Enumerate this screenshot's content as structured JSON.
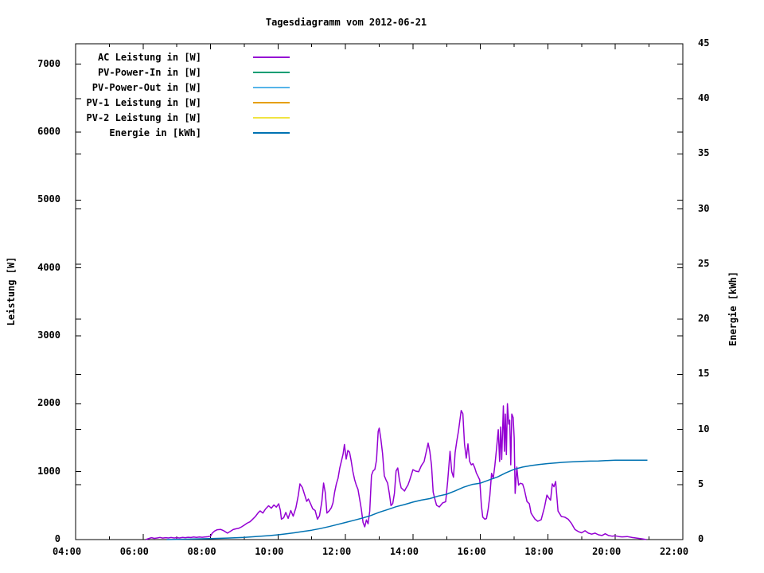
{
  "chart_data": {
    "type": "line",
    "title": "Tagesdiagramm vom 2012-06-21",
    "background": "#ffffff",
    "grid": false,
    "legend_position": "top-left-inside",
    "x_axis": {
      "range_hours": [
        4,
        22
      ],
      "tick_labels": [
        "04:00",
        "06:00",
        "08:00",
        "10:00",
        "12:00",
        "14:00",
        "16:00",
        "18:00",
        "20:00",
        "22:00"
      ],
      "major_tick_every_hours": 2,
      "minor_tick_every_hours": 1
    },
    "y_left": {
      "label": "Leistung [W]",
      "range": [
        0,
        7300
      ],
      "tick_step": 1000,
      "tick_labels": [
        "0",
        "1000",
        "2000",
        "3000",
        "4000",
        "5000",
        "6000",
        "7000"
      ]
    },
    "y_right": {
      "label": "Energie [kWh]",
      "range": [
        0,
        45
      ],
      "tick_step": 5,
      "tick_labels": [
        "0",
        "5",
        "10",
        "15",
        "20",
        "25",
        "30",
        "35",
        "40",
        "45"
      ]
    },
    "legend": [
      {
        "label": "AC Leistung in [W]",
        "color": "#9400d3"
      },
      {
        "label": "PV-Power-In in [W]",
        "color": "#009e73"
      },
      {
        "label": "PV-Power-Out in [W]",
        "color": "#56b4e9"
      },
      {
        "label": "PV-1 Leistung in [W]",
        "color": "#e69f00"
      },
      {
        "label": "PV-2 Leistung in [W]",
        "color": "#f0e442"
      },
      {
        "label": "Energie in [kWh]",
        "color": "#0072b2"
      }
    ],
    "series": [
      {
        "name": "AC Leistung in [W]",
        "color": "#9400d3",
        "axis": "y1",
        "points": [
          [
            6.08,
            0
          ],
          [
            6.15,
            12
          ],
          [
            6.25,
            28
          ],
          [
            6.33,
            18
          ],
          [
            6.42,
            24
          ],
          [
            6.5,
            32
          ],
          [
            6.58,
            22
          ],
          [
            6.67,
            28
          ],
          [
            6.75,
            24
          ],
          [
            6.83,
            30
          ],
          [
            6.92,
            24
          ],
          [
            7.0,
            28
          ],
          [
            7.08,
            24
          ],
          [
            7.17,
            32
          ],
          [
            7.25,
            28
          ],
          [
            7.33,
            34
          ],
          [
            7.42,
            30
          ],
          [
            7.5,
            38
          ],
          [
            7.58,
            32
          ],
          [
            7.67,
            38
          ],
          [
            7.75,
            34
          ],
          [
            7.83,
            38
          ],
          [
            7.92,
            42
          ],
          [
            8.0,
            50
          ],
          [
            8.05,
            95
          ],
          [
            8.12,
            125
          ],
          [
            8.2,
            145
          ],
          [
            8.3,
            150
          ],
          [
            8.4,
            128
          ],
          [
            8.5,
            95
          ],
          [
            8.58,
            118
          ],
          [
            8.67,
            148
          ],
          [
            8.75,
            158
          ],
          [
            8.83,
            165
          ],
          [
            8.92,
            188
          ],
          [
            9.0,
            212
          ],
          [
            9.08,
            240
          ],
          [
            9.17,
            262
          ],
          [
            9.25,
            300
          ],
          [
            9.33,
            340
          ],
          [
            9.42,
            400
          ],
          [
            9.47,
            422
          ],
          [
            9.55,
            390
          ],
          [
            9.63,
            450
          ],
          [
            9.72,
            498
          ],
          [
            9.8,
            462
          ],
          [
            9.88,
            510
          ],
          [
            9.95,
            478
          ],
          [
            10.02,
            527
          ],
          [
            10.07,
            430
          ],
          [
            10.1,
            300
          ],
          [
            10.17,
            322
          ],
          [
            10.23,
            400
          ],
          [
            10.3,
            312
          ],
          [
            10.38,
            428
          ],
          [
            10.45,
            345
          ],
          [
            10.53,
            468
          ],
          [
            10.6,
            650
          ],
          [
            10.65,
            820
          ],
          [
            10.72,
            768
          ],
          [
            10.8,
            645
          ],
          [
            10.85,
            562
          ],
          [
            10.9,
            598
          ],
          [
            10.97,
            520
          ],
          [
            11.03,
            452
          ],
          [
            11.1,
            428
          ],
          [
            11.17,
            300
          ],
          [
            11.23,
            352
          ],
          [
            11.3,
            558
          ],
          [
            11.35,
            832
          ],
          [
            11.4,
            692
          ],
          [
            11.45,
            390
          ],
          [
            11.52,
            425
          ],
          [
            11.58,
            468
          ],
          [
            11.63,
            540
          ],
          [
            11.68,
            700
          ],
          [
            11.73,
            822
          ],
          [
            11.78,
            905
          ],
          [
            11.83,
            1052
          ],
          [
            11.88,
            1155
          ],
          [
            11.93,
            1258
          ],
          [
            11.97,
            1400
          ],
          [
            12.02,
            1185
          ],
          [
            12.07,
            1312
          ],
          [
            12.12,
            1288
          ],
          [
            12.17,
            1158
          ],
          [
            12.22,
            1002
          ],
          [
            12.27,
            882
          ],
          [
            12.32,
            800
          ],
          [
            12.37,
            740
          ],
          [
            12.42,
            598
          ],
          [
            12.47,
            450
          ],
          [
            12.52,
            252
          ],
          [
            12.57,
            188
          ],
          [
            12.62,
            290
          ],
          [
            12.67,
            232
          ],
          [
            12.72,
            420
          ],
          [
            12.77,
            948
          ],
          [
            12.82,
            1012
          ],
          [
            12.87,
            1032
          ],
          [
            12.92,
            1170
          ],
          [
            12.97,
            1592
          ],
          [
            13.0,
            1640
          ],
          [
            13.05,
            1478
          ],
          [
            13.1,
            1268
          ],
          [
            13.15,
            940
          ],
          [
            13.2,
            880
          ],
          [
            13.25,
            830
          ],
          [
            13.3,
            680
          ],
          [
            13.35,
            500
          ],
          [
            13.4,
            530
          ],
          [
            13.45,
            680
          ],
          [
            13.5,
            1010
          ],
          [
            13.55,
            1055
          ],
          [
            13.6,
            878
          ],
          [
            13.65,
            760
          ],
          [
            13.7,
            738
          ],
          [
            13.75,
            715
          ],
          [
            13.8,
            762
          ],
          [
            13.85,
            800
          ],
          [
            13.9,
            868
          ],
          [
            13.95,
            950
          ],
          [
            14.0,
            1030
          ],
          [
            14.08,
            1008
          ],
          [
            14.17,
            1000
          ],
          [
            14.25,
            1088
          ],
          [
            14.33,
            1148
          ],
          [
            14.45,
            1420
          ],
          [
            14.5,
            1298
          ],
          [
            14.55,
            1095
          ],
          [
            14.6,
            700
          ],
          [
            14.65,
            598
          ],
          [
            14.7,
            505
          ],
          [
            14.78,
            480
          ],
          [
            14.88,
            540
          ],
          [
            14.97,
            558
          ],
          [
            15.03,
            855
          ],
          [
            15.1,
            1300
          ],
          [
            15.15,
            1002
          ],
          [
            15.2,
            918
          ],
          [
            15.25,
            1282
          ],
          [
            15.3,
            1452
          ],
          [
            15.35,
            1598
          ],
          [
            15.43,
            1900
          ],
          [
            15.48,
            1852
          ],
          [
            15.53,
            1402
          ],
          [
            15.58,
            1198
          ],
          [
            15.63,
            1408
          ],
          [
            15.68,
            1152
          ],
          [
            15.73,
            1100
          ],
          [
            15.78,
            1118
          ],
          [
            15.83,
            1058
          ],
          [
            15.88,
            980
          ],
          [
            15.93,
            930
          ],
          [
            15.98,
            878
          ],
          [
            16.03,
            500
          ],
          [
            16.07,
            332
          ],
          [
            16.13,
            300
          ],
          [
            16.18,
            310
          ],
          [
            16.23,
            450
          ],
          [
            16.28,
            645
          ],
          [
            16.33,
            975
          ],
          [
            16.38,
            900
          ],
          [
            16.43,
            1100
          ],
          [
            16.48,
            1348
          ],
          [
            16.53,
            1618
          ],
          [
            16.57,
            1150
          ],
          [
            16.6,
            1658
          ],
          [
            16.63,
            1180
          ],
          [
            16.68,
            1968
          ],
          [
            16.71,
            1300
          ],
          [
            16.74,
            1848
          ],
          [
            16.77,
            1250
          ],
          [
            16.8,
            2000
          ],
          [
            16.84,
            1700
          ],
          [
            16.87,
            1758
          ],
          [
            16.9,
            1100
          ],
          [
            16.93,
            1848
          ],
          [
            16.97,
            1798
          ],
          [
            17.0,
            1500
          ],
          [
            17.03,
            680
          ],
          [
            17.08,
            1068
          ],
          [
            17.13,
            800
          ],
          [
            17.18,
            830
          ],
          [
            17.25,
            818
          ],
          [
            17.3,
            740
          ],
          [
            17.38,
            560
          ],
          [
            17.45,
            528
          ],
          [
            17.5,
            390
          ],
          [
            17.55,
            350
          ],
          [
            17.62,
            300
          ],
          [
            17.7,
            270
          ],
          [
            17.8,
            292
          ],
          [
            17.9,
            478
          ],
          [
            17.97,
            655
          ],
          [
            18.03,
            612
          ],
          [
            18.08,
            580
          ],
          [
            18.13,
            820
          ],
          [
            18.18,
            778
          ],
          [
            18.23,
            855
          ],
          [
            18.3,
            420
          ],
          [
            18.4,
            340
          ],
          [
            18.5,
            330
          ],
          [
            18.6,
            300
          ],
          [
            18.7,
            238
          ],
          [
            18.8,
            150
          ],
          [
            18.9,
            118
          ],
          [
            19.0,
            100
          ],
          [
            19.1,
            130
          ],
          [
            19.2,
            95
          ],
          [
            19.3,
            80
          ],
          [
            19.4,
            95
          ],
          [
            19.5,
            70
          ],
          [
            19.6,
            60
          ],
          [
            19.7,
            85
          ],
          [
            19.8,
            60
          ],
          [
            19.9,
            50
          ],
          [
            20.0,
            55
          ],
          [
            20.1,
            45
          ],
          [
            20.2,
            40
          ],
          [
            20.35,
            45
          ],
          [
            20.5,
            30
          ],
          [
            20.65,
            20
          ],
          [
            20.8,
            10
          ],
          [
            20.92,
            0
          ]
        ]
      },
      {
        "name": "PV-Power-In in [W]",
        "color": "#009e73",
        "axis": "y1",
        "points": []
      },
      {
        "name": "PV-Power-Out in [W]",
        "color": "#56b4e9",
        "axis": "y1",
        "points": []
      },
      {
        "name": "PV-1 Leistung in [W]",
        "color": "#e69f00",
        "axis": "y1",
        "points": []
      },
      {
        "name": "PV-2 Leistung in [W]",
        "color": "#f0e442",
        "axis": "y1",
        "points": []
      },
      {
        "name": "Energie in [kWh]",
        "color": "#0072b2",
        "axis": "y2",
        "points": [
          [
            6.7,
            0
          ],
          [
            7.0,
            0.02
          ],
          [
            7.5,
            0.05
          ],
          [
            8.0,
            0.09
          ],
          [
            8.5,
            0.14
          ],
          [
            9.0,
            0.2
          ],
          [
            9.25,
            0.25
          ],
          [
            9.5,
            0.3
          ],
          [
            9.75,
            0.36
          ],
          [
            10.0,
            0.43
          ],
          [
            10.25,
            0.52
          ],
          [
            10.5,
            0.62
          ],
          [
            10.75,
            0.74
          ],
          [
            11.0,
            0.85
          ],
          [
            11.25,
            1.0
          ],
          [
            11.5,
            1.17
          ],
          [
            11.75,
            1.36
          ],
          [
            12.0,
            1.55
          ],
          [
            12.25,
            1.75
          ],
          [
            12.5,
            1.95
          ],
          [
            12.75,
            2.18
          ],
          [
            13.0,
            2.48
          ],
          [
            13.25,
            2.72
          ],
          [
            13.5,
            2.98
          ],
          [
            13.75,
            3.18
          ],
          [
            14.0,
            3.4
          ],
          [
            14.25,
            3.58
          ],
          [
            14.5,
            3.72
          ],
          [
            14.75,
            3.95
          ],
          [
            15.0,
            4.12
          ],
          [
            15.25,
            4.42
          ],
          [
            15.5,
            4.75
          ],
          [
            15.75,
            5.0
          ],
          [
            16.0,
            5.12
          ],
          [
            16.25,
            5.4
          ],
          [
            16.5,
            5.68
          ],
          [
            16.75,
            6.05
          ],
          [
            17.0,
            6.38
          ],
          [
            17.25,
            6.58
          ],
          [
            17.5,
            6.72
          ],
          [
            17.75,
            6.82
          ],
          [
            18.0,
            6.9
          ],
          [
            18.25,
            6.96
          ],
          [
            18.5,
            7.02
          ],
          [
            18.75,
            7.06
          ],
          [
            19.0,
            7.1
          ],
          [
            19.25,
            7.12
          ],
          [
            19.5,
            7.14
          ],
          [
            19.8,
            7.18
          ],
          [
            20.0,
            7.2
          ],
          [
            20.5,
            7.2
          ],
          [
            20.95,
            7.2
          ]
        ]
      }
    ]
  }
}
